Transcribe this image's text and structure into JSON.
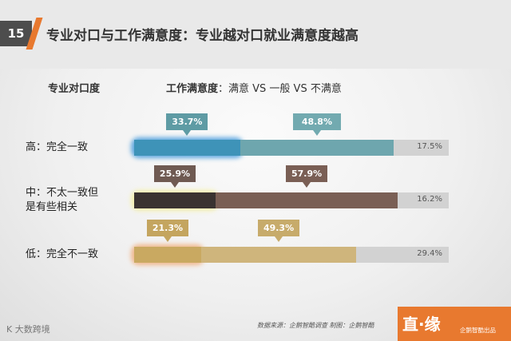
{
  "header": {
    "number": "15",
    "title": "专业对口与工作满意度：专业越对口就业满意度越高"
  },
  "chart_data": {
    "type": "bar",
    "stacked": true,
    "column_labels": {
      "left": "专业对口度",
      "right_bold": "工作满意度",
      "right_rest": "：满意 VS 一般 VS 不满意"
    },
    "categories": [
      "高：完全一致",
      "中：不太一致但是有些相关",
      "低：完全不一致"
    ],
    "series": [
      {
        "name": "满意",
        "values": [
          33.7,
          25.9,
          21.3
        ]
      },
      {
        "name": "一般",
        "values": [
          48.8,
          57.9,
          49.3
        ]
      },
      {
        "name": "不满意",
        "values": [
          17.5,
          16.2,
          29.4
        ]
      }
    ],
    "labels": [
      [
        "33.7%",
        "48.8%",
        "17.5%"
      ],
      [
        "25.9%",
        "57.9%",
        "16.2%"
      ],
      [
        "21.3%",
        "49.3%",
        "29.4%"
      ]
    ],
    "colors": [
      [
        "#3e93b8",
        "#6ea6ae",
        "#d2d2d2"
      ],
      [
        "#3a3331",
        "#7a5f55",
        "#d2d2d2"
      ],
      [
        "#c9a961",
        "#cfb57c",
        "#d2d2d2"
      ]
    ],
    "callout_colors": [
      [
        "#5e9ba4",
        "#72aab0"
      ],
      [
        "#6f5a52",
        "#7a5f55"
      ],
      [
        "#c4a55f",
        "#c7ab6b"
      ]
    ],
    "glow_colors": [
      "#2e8ed8",
      "#f4ef96",
      "#f0a56b"
    ]
  },
  "footer": {
    "source": "数据来源：企鹅智酷调查  制图：企鹅智酷",
    "brand_logo": "直·缘",
    "brand_tag": "企鹅智酷出品",
    "watermark": "K 大数跨境"
  }
}
